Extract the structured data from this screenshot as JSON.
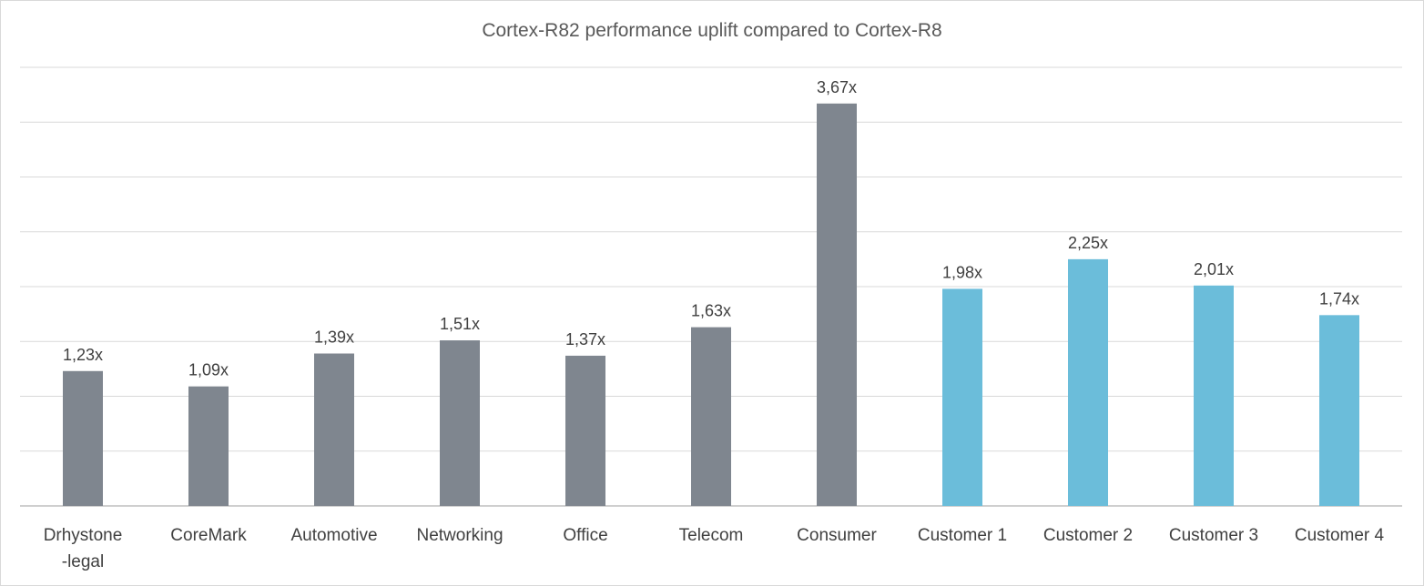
{
  "chart_data": {
    "type": "bar",
    "title": "Cortex-R82 performance uplift compared to Cortex-R8",
    "xlabel": "",
    "ylabel": "",
    "ylim": [
      0,
      4.0
    ],
    "grid": true,
    "legend": "none",
    "value_suffix": "x",
    "categories": [
      [
        "Drhystone",
        "-legal"
      ],
      [
        "CoreMark"
      ],
      [
        "Automotive"
      ],
      [
        "Networking"
      ],
      [
        "Office"
      ],
      [
        "Telecom"
      ],
      [
        "Consumer"
      ],
      [
        "Customer 1"
      ],
      [
        "Customer 2"
      ],
      [
        "Customer 3"
      ],
      [
        "Customer 4"
      ]
    ],
    "values": [
      1.23,
      1.09,
      1.39,
      1.51,
      1.37,
      1.63,
      3.67,
      1.98,
      2.25,
      2.01,
      1.74
    ],
    "value_labels": [
      "1,23x",
      "1,09x",
      "1,39x",
      "1,51x",
      "1,37x",
      "1,63x",
      "3,67x",
      "1,98x",
      "2,25x",
      "2,01x",
      "1,74x"
    ],
    "bar_colors": [
      "#7f868f",
      "#7f868f",
      "#7f868f",
      "#7f868f",
      "#7f868f",
      "#7f868f",
      "#7f868f",
      "#6bbdda",
      "#6bbdda",
      "#6bbdda",
      "#6bbdda"
    ]
  }
}
